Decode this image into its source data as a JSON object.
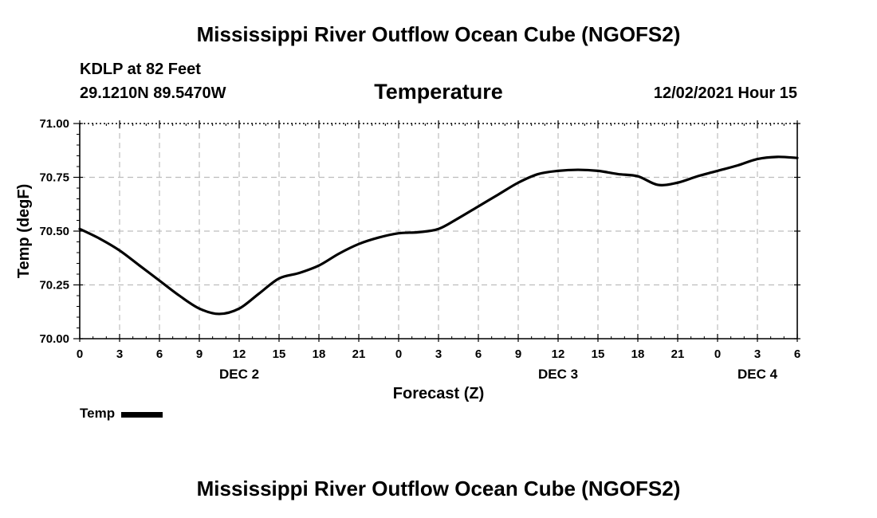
{
  "header": {
    "main_title": "Mississippi River Outflow Ocean Cube (NGOFS2)",
    "station": "KDLP at 82 Feet",
    "coords": "29.1210N  89.5470W",
    "chart_title": "Temperature",
    "date_hour": "12/02/2021 Hour 15"
  },
  "legend": {
    "label": "Temp",
    "color": "#000000"
  },
  "footer": {
    "title": "Mississippi River Outflow Ocean Cube (NGOFS2)"
  },
  "chart_data": {
    "type": "line",
    "title": "Temperature",
    "xlabel": "Forecast (Z)",
    "ylabel": "Temp (degF)",
    "x_range": [
      0,
      54
    ],
    "ylim": [
      70.0,
      71.0
    ],
    "y_ticks": [
      70.0,
      70.25,
      70.5,
      70.75,
      71.0
    ],
    "y_tick_labels": [
      "70.00",
      "70.25",
      "70.50",
      "70.75",
      "71.00"
    ],
    "x_tick_labels": [
      "0",
      "3",
      "6",
      "9",
      "12",
      "15",
      "18",
      "21",
      "0",
      "3",
      "6",
      "9",
      "12",
      "15",
      "18",
      "21",
      "0",
      "3",
      "6"
    ],
    "day_labels": [
      {
        "label": "DEC 2",
        "hour": 12
      },
      {
        "label": "DEC 3",
        "hour": 36
      },
      {
        "label": "DEC 4",
        "hour": 51
      }
    ],
    "grid": true,
    "series": [
      {
        "name": "Temp",
        "color": "#000000",
        "x": [
          0,
          1.5,
          3,
          4.5,
          6,
          7.5,
          9,
          10.5,
          12,
          13.5,
          15,
          16.5,
          18,
          19.5,
          21,
          22.5,
          24,
          25.5,
          27,
          28.5,
          30,
          31.5,
          33,
          34.5,
          36,
          37.5,
          39,
          40.5,
          42,
          43.5,
          45,
          46.5,
          48,
          49.5,
          51,
          52.5,
          54
        ],
        "values": [
          70.51,
          70.465,
          70.41,
          70.34,
          70.27,
          70.2,
          70.14,
          70.115,
          70.14,
          70.21,
          70.28,
          70.305,
          70.34,
          70.395,
          70.44,
          70.47,
          70.49,
          70.495,
          70.51,
          70.56,
          70.615,
          70.67,
          70.725,
          70.765,
          70.78,
          70.785,
          70.78,
          70.765,
          70.755,
          70.715,
          70.725,
          70.755,
          70.78,
          70.805,
          70.835,
          70.845,
          70.84
        ]
      }
    ]
  }
}
